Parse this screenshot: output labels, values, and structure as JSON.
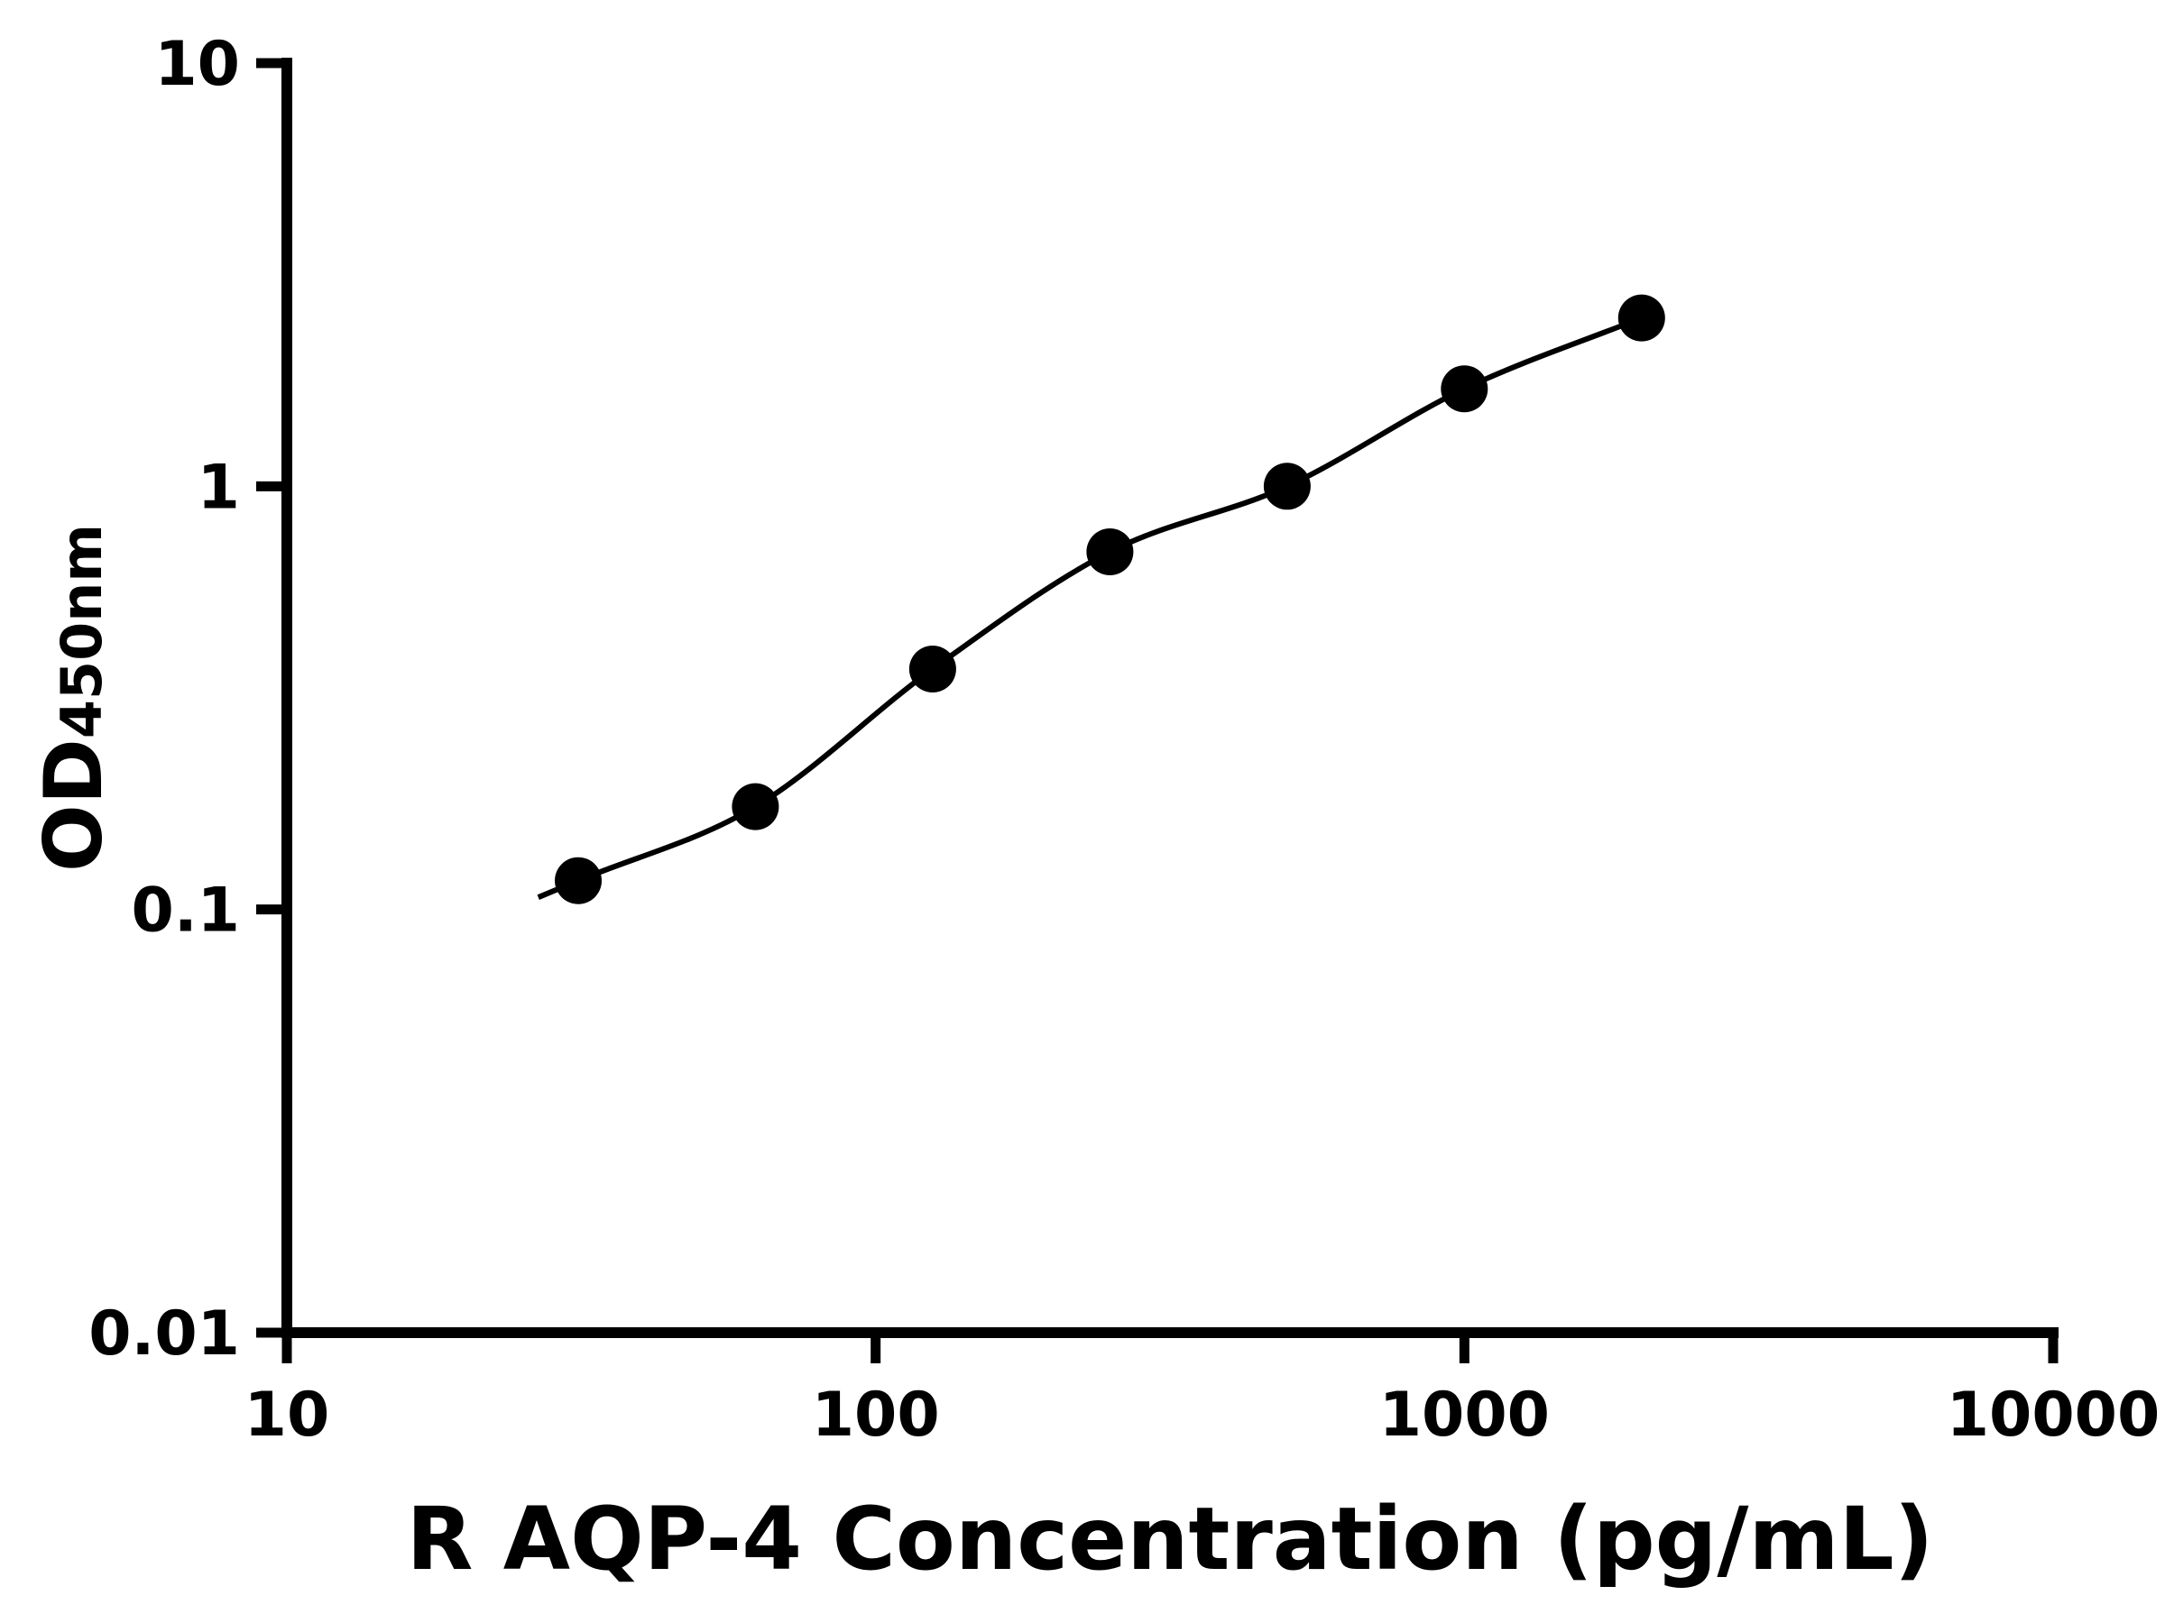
{
  "figure": {
    "background": "#ffffff"
  },
  "chart_data": {
    "type": "scatter",
    "xlabel": "R AQP-4 Concentration (pg/mL)",
    "ylabel": "OD450nm",
    "ylabel_main": "OD",
    "ylabel_sub": "450nm",
    "x_scale": "log",
    "y_scale": "log",
    "xlim": [
      10,
      10000
    ],
    "ylim": [
      0.01,
      10
    ],
    "x_ticks": [
      10,
      100,
      1000,
      10000
    ],
    "x_tick_labels": [
      "10",
      "100",
      "1000",
      "10000"
    ],
    "y_ticks": [
      0.01,
      0.1,
      1,
      10
    ],
    "y_tick_labels": [
      "0.01",
      "0.1",
      "1",
      "10"
    ],
    "grid": false,
    "legend": null,
    "curve_fit": true,
    "axis_color": "#000000",
    "line_color": "#000000",
    "marker_color": "#000000",
    "series": [
      {
        "marker": "circle",
        "points": [
          {
            "x": 31.25,
            "y": 0.117
          },
          {
            "x": 62.5,
            "y": 0.175
          },
          {
            "x": 125,
            "y": 0.37
          },
          {
            "x": 250,
            "y": 0.7
          },
          {
            "x": 500,
            "y": 1.0
          },
          {
            "x": 1000,
            "y": 1.7
          },
          {
            "x": 2000,
            "y": 2.5
          }
        ]
      }
    ]
  }
}
